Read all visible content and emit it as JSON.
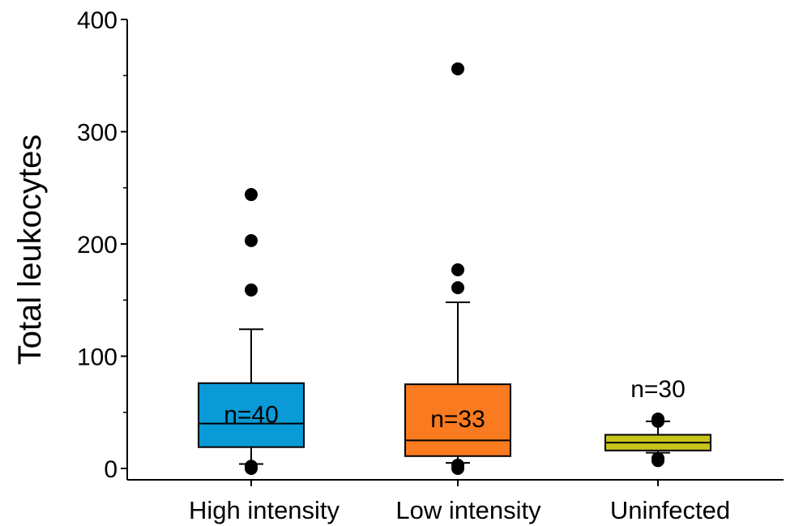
{
  "chart_data": {
    "type": "boxplot",
    "ylabel": "Total leukocytes",
    "xlabel": "",
    "ylim": [
      0,
      400
    ],
    "yticks": [
      0,
      100,
      200,
      300,
      400
    ],
    "grid": false,
    "groups": [
      {
        "category": "High intensity",
        "color": "#0a9ad6",
        "n_label": "n=40",
        "whisker_low": 4,
        "q1": 19,
        "median": 40,
        "q3": 76,
        "whisker_high": 124,
        "outliers": [
          0,
          2,
          159,
          203,
          244
        ]
      },
      {
        "category": "Low intensity",
        "color": "#f97a1f",
        "n_label": "n=33",
        "whisker_low": 5,
        "q1": 11,
        "median": 25,
        "q3": 75,
        "whisker_high": 148,
        "outliers": [
          0,
          3,
          161,
          177,
          356
        ]
      },
      {
        "category": "Uninfected",
        "color": "#c9c41c",
        "n_label": "n=30",
        "whisker_low": 14,
        "q1": 16,
        "median": 23,
        "q3": 30,
        "whisker_high": 42,
        "outliers": [
          7,
          9,
          42,
          44
        ]
      }
    ]
  }
}
